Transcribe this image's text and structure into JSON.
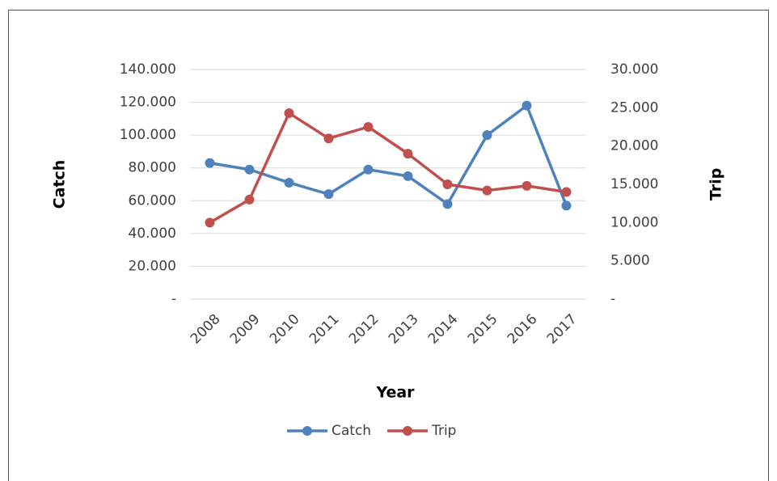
{
  "chart_data": {
    "type": "line",
    "x_label": "Year",
    "y_label": "Catch",
    "y2_label": "Trip",
    "categories": [
      "2008",
      "2009",
      "2010",
      "2011",
      "2012",
      "2013",
      "2014",
      "2015",
      "2016",
      "2017"
    ],
    "series": [
      {
        "name": "Catch",
        "color": "#4f81bd",
        "axis": "y",
        "values": [
          83000,
          79000,
          71000,
          64000,
          79000,
          75000,
          58000,
          100000,
          118000,
          57000
        ]
      },
      {
        "name": "Trip",
        "color": "#c0504d",
        "axis": "y2",
        "values": [
          10000,
          13000,
          24300,
          21000,
          22500,
          19000,
          15000,
          14200,
          14800,
          14000
        ]
      }
    ],
    "ylim": [
      0,
      140000
    ],
    "yticks": [
      {
        "value": 0,
        "label": "-"
      },
      {
        "value": 20000,
        "label": "20.000"
      },
      {
        "value": 40000,
        "label": "40.000"
      },
      {
        "value": 60000,
        "label": "60.000"
      },
      {
        "value": 80000,
        "label": "80.000"
      },
      {
        "value": 100000,
        "label": "100.000"
      },
      {
        "value": 120000,
        "label": "120.000"
      },
      {
        "value": 140000,
        "label": "140.000"
      }
    ],
    "y2lim": [
      0,
      30000
    ],
    "y2ticks": [
      {
        "value": 0,
        "label": "-"
      },
      {
        "value": 5000,
        "label": "5.000"
      },
      {
        "value": 10000,
        "label": "10.000"
      },
      {
        "value": 15000,
        "label": "15.000"
      },
      {
        "value": 20000,
        "label": "20.000"
      },
      {
        "value": 25000,
        "label": "25.000"
      },
      {
        "value": 30000,
        "label": "30.000"
      }
    ],
    "grid": true,
    "legend": "bottom"
  }
}
